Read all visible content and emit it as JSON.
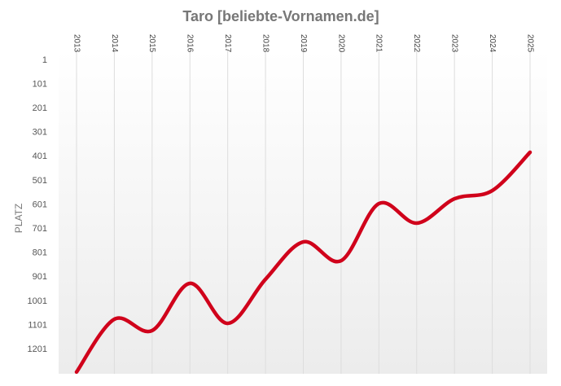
{
  "chart_data": {
    "type": "line",
    "title": "Taro [beliebte-Vornamen.de]",
    "y_label": "PLATZ",
    "categories": [
      "2013",
      "2014",
      "2015",
      "2016",
      "2017",
      "2018",
      "2019",
      "2020",
      "2021",
      "2022",
      "2023",
      "2024",
      "2025"
    ],
    "series": [
      {
        "name": "Taro",
        "color": "#d0021b",
        "values": [
          1295,
          1076,
          1123,
          927,
          1093,
          910,
          755,
          833,
          596,
          677,
          576,
          542,
          383
        ]
      }
    ],
    "ylim": [
      1,
      1301
    ],
    "y_inverted": true,
    "yticks": [
      1,
      101,
      201,
      301,
      401,
      501,
      601,
      701,
      801,
      901,
      1001,
      1101,
      1201
    ],
    "grid": true
  }
}
